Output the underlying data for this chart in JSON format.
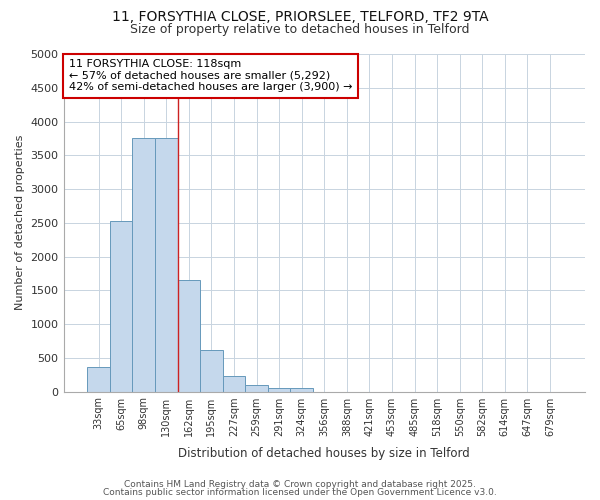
{
  "title_line1": "11, FORSYTHIA CLOSE, PRIORSLEE, TELFORD, TF2 9TA",
  "title_line2": "Size of property relative to detached houses in Telford",
  "xlabel": "Distribution of detached houses by size in Telford",
  "ylabel": "Number of detached properties",
  "categories": [
    "33sqm",
    "65sqm",
    "98sqm",
    "130sqm",
    "162sqm",
    "195sqm",
    "227sqm",
    "259sqm",
    "291sqm",
    "324sqm",
    "356sqm",
    "388sqm",
    "421sqm",
    "453sqm",
    "485sqm",
    "518sqm",
    "550sqm",
    "582sqm",
    "614sqm",
    "647sqm",
    "679sqm"
  ],
  "bar_heights": [
    370,
    2530,
    3760,
    3760,
    1650,
    620,
    230,
    100,
    50,
    50,
    0,
    0,
    0,
    0,
    0,
    0,
    0,
    0,
    0,
    0,
    0
  ],
  "bar_color": "#c5d8ec",
  "bar_edge_color": "#6699bb",
  "vline_x": 3.5,
  "vline_color": "#cc2222",
  "annotation_text": "11 FORSYTHIA CLOSE: 118sqm\n← 57% of detached houses are smaller (5,292)\n42% of semi-detached houses are larger (3,900) →",
  "annotation_box_color": "#ffffff",
  "annotation_box_edge": "#cc0000",
  "ylim": [
    0,
    5000
  ],
  "yticks": [
    0,
    500,
    1000,
    1500,
    2000,
    2500,
    3000,
    3500,
    4000,
    4500,
    5000
  ],
  "background_color": "#ffffff",
  "grid_color": "#c8d4e0",
  "footer_line1": "Contains HM Land Registry data © Crown copyright and database right 2025.",
  "footer_line2": "Contains public sector information licensed under the Open Government Licence v3.0."
}
